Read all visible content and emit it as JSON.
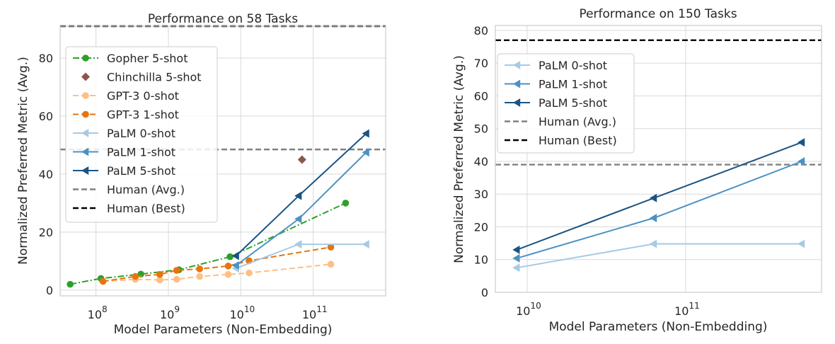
{
  "chart_data": [
    {
      "type": "line",
      "title": "Performance on 58 Tasks",
      "xlabel": "Model Parameters (Non-Embedding)",
      "ylabel": "Normalized Preferred Metric (Avg.)",
      "xscale": "log",
      "xlim": [
        32000000.0,
        1000000000000.0
      ],
      "ylim": [
        -2,
        91
      ],
      "yticks": [
        0,
        20,
        40,
        60,
        80
      ],
      "xticks": [
        {
          "value": 100000000.0,
          "base": "10",
          "exp": "8"
        },
        {
          "value": 1000000000.0,
          "base": "10",
          "exp": "9"
        },
        {
          "value": 10000000000.0,
          "base": "10",
          "exp": "10"
        },
        {
          "value": 100000000000.0,
          "base": "10",
          "exp": "11"
        }
      ],
      "legend_position": "upper-left",
      "series": [
        {
          "name": "Gopher 5-shot",
          "color": "#2ca02c",
          "style": "dashdot",
          "marker": "circle",
          "x": [
            44000000.0,
            117000000.0,
            417000000.0,
            1400000000.0,
            7100000000.0,
            280000000000.0
          ],
          "y": [
            2,
            4,
            5.5,
            7,
            11.5,
            30
          ]
        },
        {
          "name": "Chinchilla 5-shot",
          "color": "#8c564b",
          "style": "none",
          "marker": "diamond",
          "x": [
            70000000000.0
          ],
          "y": [
            45
          ]
        },
        {
          "name": "GPT-3 0-shot",
          "color": "#fdbf86",
          "style": "dashed",
          "marker": "circle",
          "x": [
            125000000.0,
            350000000.0,
            760000000.0,
            1300000000.0,
            2700000000.0,
            6700000000.0,
            13000000000.0,
            175000000000.0
          ],
          "y": [
            3,
            3.7,
            3.5,
            3.7,
            4.7,
            5.4,
            5.9,
            8.9
          ]
        },
        {
          "name": "GPT-3 1-shot",
          "color": "#e6750e",
          "style": "dashed",
          "marker": "circle",
          "x": [
            125000000.0,
            350000000.0,
            760000000.0,
            1300000000.0,
            2700000000.0,
            6700000000.0,
            13000000000.0,
            175000000000.0
          ],
          "y": [
            3,
            4.7,
            5.4,
            6.8,
            7.3,
            8.3,
            10.1,
            14.8
          ]
        },
        {
          "name": "PaLM 0-shot",
          "color": "#a6cbe3",
          "style": "solid",
          "marker": "triangle-left",
          "x": [
            8600000000.0,
            63000000000.0,
            540000000000.0
          ],
          "y": [
            7.5,
            15.8,
            15.8
          ]
        },
        {
          "name": "PaLM 1-shot",
          "color": "#4b92c3",
          "style": "solid",
          "marker": "triangle-left",
          "x": [
            8600000000.0,
            63000000000.0,
            540000000000.0
          ],
          "y": [
            8.5,
            24.5,
            47.5
          ]
        },
        {
          "name": "PaLM 5-shot",
          "color": "#1a5484",
          "style": "solid",
          "marker": "triangle-left",
          "x": [
            8600000000.0,
            63000000000.0,
            540000000000.0
          ],
          "y": [
            11.8,
            32.5,
            54
          ]
        }
      ],
      "hlines": [
        {
          "name": "Human (Avg.)",
          "color": "#808080",
          "style": "dashed",
          "y": 48.5
        },
        {
          "name": "Human (Best)",
          "color": "#000000",
          "style": "dashed",
          "y": 91
        }
      ]
    },
    {
      "type": "line",
      "title": "Performance on 150 Tasks",
      "xlabel": "Model Parameters (Non-Embedding)",
      "ylabel": "Normalized Preferred Metric (Avg.)",
      "xscale": "log",
      "xlim": [
        6300000000.0,
        720000000000.0
      ],
      "ylim": [
        0,
        81.5
      ],
      "yticks": [
        0,
        10,
        20,
        30,
        40,
        50,
        60,
        70,
        80
      ],
      "xticks": [
        {
          "value": 10000000000.0,
          "base": "10",
          "exp": "10"
        },
        {
          "value": 100000000000.0,
          "base": "10",
          "exp": "11"
        }
      ],
      "legend_position": "upper-left",
      "series": [
        {
          "name": "PaLM 0-shot",
          "color": "#a6cbe3",
          "style": "solid",
          "marker": "triangle-left",
          "x": [
            8600000000.0,
            63000000000.0,
            540000000000.0
          ],
          "y": [
            7.5,
            14.8,
            14.8
          ]
        },
        {
          "name": "PaLM 1-shot",
          "color": "#4b92c3",
          "style": "solid",
          "marker": "triangle-left",
          "x": [
            8600000000.0,
            63000000000.0,
            540000000000.0
          ],
          "y": [
            10.4,
            22.7,
            40
          ]
        },
        {
          "name": "PaLM 5-shot",
          "color": "#1a5484",
          "style": "solid",
          "marker": "triangle-left",
          "x": [
            8600000000.0,
            63000000000.0,
            540000000000.0
          ],
          "y": [
            13,
            28.8,
            45.8
          ]
        }
      ],
      "hlines": [
        {
          "name": "Human (Avg.)",
          "color": "#808080",
          "style": "dashed",
          "y": 39
        },
        {
          "name": "Human (Best)",
          "color": "#000000",
          "style": "dashed",
          "y": 77
        }
      ]
    }
  ]
}
